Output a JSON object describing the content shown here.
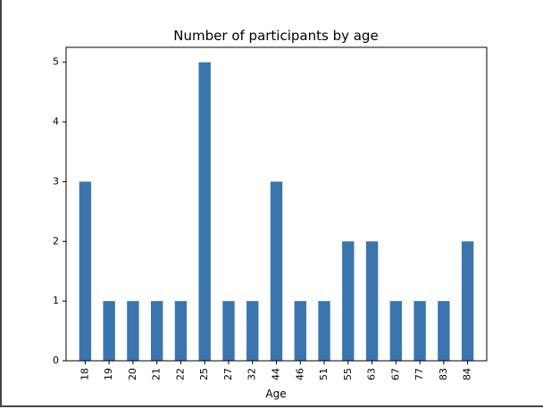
{
  "chart_data": {
    "type": "bar",
    "title": "Number of participants by age",
    "xlabel": "Age",
    "ylabel": "",
    "categories": [
      "18",
      "19",
      "20",
      "21",
      "22",
      "25",
      "27",
      "32",
      "44",
      "46",
      "51",
      "55",
      "63",
      "67",
      "77",
      "83",
      "84"
    ],
    "values": [
      3,
      1,
      1,
      1,
      1,
      5,
      1,
      1,
      3,
      1,
      1,
      2,
      2,
      1,
      1,
      1,
      2
    ],
    "ylim": [
      0,
      5.25
    ],
    "yticks": [
      0,
      1,
      2,
      3,
      4,
      5
    ],
    "grid": false,
    "legend": "none",
    "bar_color": "#3a75b0",
    "tick_label_rotation": "vertical"
  }
}
